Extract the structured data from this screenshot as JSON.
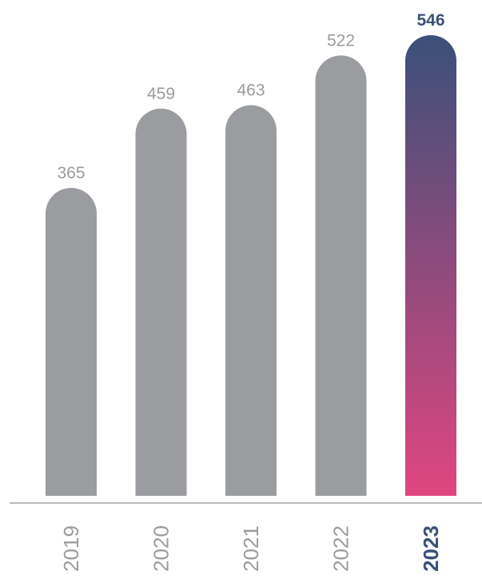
{
  "chart_data": {
    "type": "bar",
    "title": "",
    "xlabel": "",
    "ylabel": "",
    "categories": [
      "2019",
      "2020",
      "2021",
      "2022",
      "2023"
    ],
    "values": [
      365,
      459,
      463,
      522,
      546
    ],
    "data_labels": [
      "365",
      "459",
      "463",
      "522",
      "546"
    ],
    "highlight_index": 4,
    "ylim": [
      0,
      546
    ],
    "grid": false,
    "legend": "none",
    "colors": {
      "bar": "#9a9c9f",
      "highlight_gradient_top": "#3b5079",
      "highlight_gradient_bottom": "#e04680",
      "highlight_text": "#3b5079",
      "label": "#9a9c9f",
      "axis": "#b9bbbe"
    }
  }
}
